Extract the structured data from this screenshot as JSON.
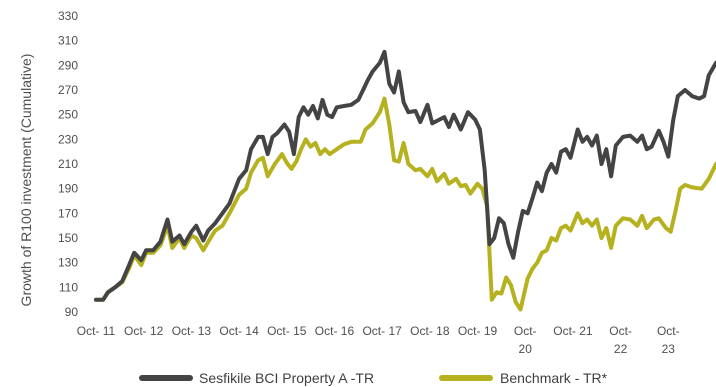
{
  "chart_data": {
    "type": "line",
    "title": "",
    "ylabel": "Growth of R100 investment (Cumulative)",
    "xlabel": "",
    "ylim": [
      90,
      330
    ],
    "y_ticks": [
      90,
      110,
      130,
      150,
      170,
      190,
      210,
      230,
      250,
      270,
      290,
      310,
      330
    ],
    "x_tick_labels": [
      [
        "Oct- 11"
      ],
      [
        "Oct- 12"
      ],
      [
        "Oct- 13"
      ],
      [
        "Oct- 14"
      ],
      [
        "Oct- 15"
      ],
      [
        "Oct- 16"
      ],
      [
        "Oct- 17"
      ],
      [
        "Oct- 18"
      ],
      [
        "Oct- 19"
      ],
      [
        "Oct-",
        "20"
      ],
      [
        "Oct- 21"
      ],
      [
        "Oct-",
        "22"
      ],
      [
        "Oct-",
        "23"
      ]
    ],
    "x_tick_years": [
      2011.75,
      2012.75,
      2013.75,
      2014.75,
      2015.75,
      2016.75,
      2017.75,
      2018.75,
      2019.75,
      2020.75,
      2021.75,
      2022.75,
      2023.75
    ],
    "x_range": [
      2011.75,
      2024.75
    ],
    "grid": false,
    "legend_position": "bottom",
    "series": [
      {
        "name": "Sesfikile BCI Property A -TR",
        "color": "#444444",
        "points": [
          [
            2011.75,
            100
          ],
          [
            2011.9,
            100
          ],
          [
            2012.0,
            106
          ],
          [
            2012.15,
            110
          ],
          [
            2012.3,
            115
          ],
          [
            2012.4,
            124
          ],
          [
            2012.55,
            138
          ],
          [
            2012.7,
            132
          ],
          [
            2012.8,
            140
          ],
          [
            2012.95,
            140
          ],
          [
            2013.1,
            147
          ],
          [
            2013.25,
            165
          ],
          [
            2013.35,
            147
          ],
          [
            2013.5,
            152
          ],
          [
            2013.6,
            145
          ],
          [
            2013.75,
            155
          ],
          [
            2013.85,
            160
          ],
          [
            2014.0,
            148
          ],
          [
            2014.1,
            156
          ],
          [
            2014.25,
            162
          ],
          [
            2014.4,
            170
          ],
          [
            2014.55,
            178
          ],
          [
            2014.75,
            198
          ],
          [
            2014.9,
            205
          ],
          [
            2015.0,
            222
          ],
          [
            2015.15,
            232
          ],
          [
            2015.25,
            232
          ],
          [
            2015.35,
            218
          ],
          [
            2015.45,
            232
          ],
          [
            2015.55,
            235
          ],
          [
            2015.7,
            242
          ],
          [
            2015.8,
            236
          ],
          [
            2015.9,
            218
          ],
          [
            2016.0,
            248
          ],
          [
            2016.1,
            256
          ],
          [
            2016.2,
            250
          ],
          [
            2016.3,
            257
          ],
          [
            2016.4,
            247
          ],
          [
            2016.5,
            262
          ],
          [
            2016.6,
            250
          ],
          [
            2016.7,
            248
          ],
          [
            2016.8,
            256
          ],
          [
            2016.95,
            257
          ],
          [
            2017.1,
            258
          ],
          [
            2017.25,
            262
          ],
          [
            2017.35,
            270
          ],
          [
            2017.45,
            278
          ],
          [
            2017.55,
            285
          ],
          [
            2017.7,
            292
          ],
          [
            2017.8,
            301
          ],
          [
            2017.9,
            275
          ],
          [
            2018.0,
            268
          ],
          [
            2018.1,
            285
          ],
          [
            2018.2,
            260
          ],
          [
            2018.3,
            252
          ],
          [
            2018.45,
            253
          ],
          [
            2018.55,
            244
          ],
          [
            2018.7,
            258
          ],
          [
            2018.8,
            243
          ],
          [
            2018.95,
            246
          ],
          [
            2019.05,
            248
          ],
          [
            2019.15,
            240
          ],
          [
            2019.25,
            250
          ],
          [
            2019.4,
            238
          ],
          [
            2019.55,
            252
          ],
          [
            2019.7,
            246
          ],
          [
            2019.8,
            238
          ],
          [
            2019.9,
            205
          ],
          [
            2020.0,
            145
          ],
          [
            2020.1,
            150
          ],
          [
            2020.2,
            166
          ],
          [
            2020.3,
            162
          ],
          [
            2020.4,
            145
          ],
          [
            2020.5,
            134
          ],
          [
            2020.6,
            155
          ],
          [
            2020.7,
            172
          ],
          [
            2020.8,
            170
          ],
          [
            2020.9,
            182
          ],
          [
            2021.0,
            195
          ],
          [
            2021.1,
            188
          ],
          [
            2021.2,
            203
          ],
          [
            2021.3,
            210
          ],
          [
            2021.4,
            203
          ],
          [
            2021.5,
            220
          ],
          [
            2021.6,
            222
          ],
          [
            2021.7,
            215
          ],
          [
            2021.85,
            238
          ],
          [
            2021.95,
            228
          ],
          [
            2022.05,
            232
          ],
          [
            2022.15,
            225
          ],
          [
            2022.25,
            233
          ],
          [
            2022.35,
            210
          ],
          [
            2022.45,
            222
          ],
          [
            2022.55,
            200
          ],
          [
            2022.65,
            225
          ],
          [
            2022.8,
            232
          ],
          [
            2022.95,
            233
          ],
          [
            2023.1,
            228
          ],
          [
            2023.2,
            233
          ],
          [
            2023.3,
            222
          ],
          [
            2023.4,
            224
          ],
          [
            2023.55,
            237
          ],
          [
            2023.65,
            228
          ],
          [
            2023.75,
            216
          ],
          [
            2023.85,
            245
          ],
          [
            2023.95,
            265
          ],
          [
            2024.1,
            270
          ],
          [
            2024.25,
            265
          ],
          [
            2024.4,
            263
          ],
          [
            2024.5,
            265
          ],
          [
            2024.6,
            282
          ],
          [
            2024.75,
            292
          ]
        ]
      },
      {
        "name": "Benchmark - TR*",
        "color": "#b6b11f",
        "points": [
          [
            2011.75,
            100
          ],
          [
            2011.9,
            100
          ],
          [
            2012.0,
            106
          ],
          [
            2012.15,
            110
          ],
          [
            2012.3,
            114
          ],
          [
            2012.45,
            126
          ],
          [
            2012.55,
            136
          ],
          [
            2012.7,
            128
          ],
          [
            2012.8,
            138
          ],
          [
            2012.95,
            138
          ],
          [
            2013.1,
            144
          ],
          [
            2013.25,
            160
          ],
          [
            2013.35,
            142
          ],
          [
            2013.5,
            150
          ],
          [
            2013.6,
            142
          ],
          [
            2013.75,
            152
          ],
          [
            2013.85,
            150
          ],
          [
            2014.0,
            140
          ],
          [
            2014.15,
            150
          ],
          [
            2014.25,
            156
          ],
          [
            2014.4,
            160
          ],
          [
            2014.55,
            170
          ],
          [
            2014.75,
            185
          ],
          [
            2014.9,
            190
          ],
          [
            2015.0,
            203
          ],
          [
            2015.15,
            213
          ],
          [
            2015.25,
            215
          ],
          [
            2015.35,
            200
          ],
          [
            2015.5,
            210
          ],
          [
            2015.65,
            218
          ],
          [
            2015.75,
            211
          ],
          [
            2015.85,
            206
          ],
          [
            2015.95,
            212
          ],
          [
            2016.05,
            222
          ],
          [
            2016.15,
            230
          ],
          [
            2016.25,
            224
          ],
          [
            2016.35,
            227
          ],
          [
            2016.45,
            218
          ],
          [
            2016.55,
            222
          ],
          [
            2016.65,
            218
          ],
          [
            2016.8,
            222
          ],
          [
            2016.95,
            226
          ],
          [
            2017.1,
            228
          ],
          [
            2017.3,
            228
          ],
          [
            2017.4,
            238
          ],
          [
            2017.55,
            243
          ],
          [
            2017.7,
            252
          ],
          [
            2017.8,
            263
          ],
          [
            2017.9,
            242
          ],
          [
            2018.0,
            213
          ],
          [
            2018.1,
            212
          ],
          [
            2018.2,
            227
          ],
          [
            2018.3,
            210
          ],
          [
            2018.45,
            205
          ],
          [
            2018.55,
            206
          ],
          [
            2018.7,
            200
          ],
          [
            2018.8,
            206
          ],
          [
            2018.9,
            196
          ],
          [
            2019.05,
            202
          ],
          [
            2019.15,
            194
          ],
          [
            2019.3,
            198
          ],
          [
            2019.4,
            192
          ],
          [
            2019.5,
            193
          ],
          [
            2019.6,
            186
          ],
          [
            2019.75,
            194
          ],
          [
            2019.85,
            190
          ],
          [
            2019.95,
            176
          ],
          [
            2020.05,
            100
          ],
          [
            2020.15,
            106
          ],
          [
            2020.25,
            105
          ],
          [
            2020.35,
            118
          ],
          [
            2020.45,
            112
          ],
          [
            2020.55,
            98
          ],
          [
            2020.65,
            92
          ],
          [
            2020.8,
            117
          ],
          [
            2020.9,
            125
          ],
          [
            2021.0,
            130
          ],
          [
            2021.1,
            138
          ],
          [
            2021.2,
            140
          ],
          [
            2021.3,
            150
          ],
          [
            2021.4,
            148
          ],
          [
            2021.5,
            158
          ],
          [
            2021.6,
            160
          ],
          [
            2021.7,
            156
          ],
          [
            2021.85,
            170
          ],
          [
            2021.95,
            162
          ],
          [
            2022.05,
            165
          ],
          [
            2022.15,
            160
          ],
          [
            2022.25,
            165
          ],
          [
            2022.35,
            150
          ],
          [
            2022.45,
            158
          ],
          [
            2022.55,
            142
          ],
          [
            2022.65,
            160
          ],
          [
            2022.8,
            166
          ],
          [
            2022.95,
            165
          ],
          [
            2023.1,
            160
          ],
          [
            2023.2,
            168
          ],
          [
            2023.3,
            158
          ],
          [
            2023.45,
            165
          ],
          [
            2023.55,
            166
          ],
          [
            2023.7,
            158
          ],
          [
            2023.8,
            155
          ],
          [
            2023.9,
            172
          ],
          [
            2024.0,
            190
          ],
          [
            2024.1,
            193
          ],
          [
            2024.25,
            191
          ],
          [
            2024.45,
            190
          ],
          [
            2024.6,
            198
          ],
          [
            2024.75,
            210
          ]
        ]
      }
    ]
  }
}
